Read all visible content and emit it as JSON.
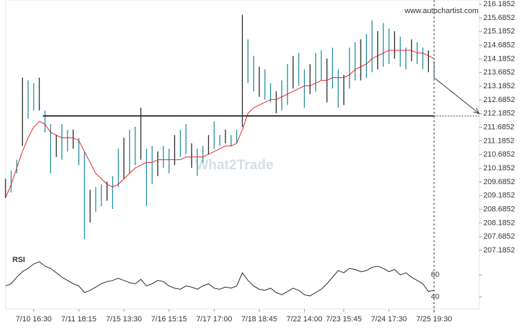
{
  "chart_data": {
    "type": "range_bar",
    "watermark": "What2Trade",
    "source": "www.autochartist.com",
    "color": "#1b8a9c",
    "ma_color": "#e02020",
    "high": [
      209.8,
      210.1,
      210.5,
      213.5,
      213.4,
      213.3,
      213.5,
      212.3,
      211.8,
      211.4,
      211.8,
      211.6,
      211.6,
      211.3,
      210.8,
      209.4,
      209.5,
      209.6,
      209.7,
      209.9,
      210.9,
      211.3,
      211.6,
      211.7,
      212.4,
      210.9,
      211.0,
      210.8,
      211.0,
      210.9,
      211.4,
      211.6,
      211.8,
      211.1,
      210.9,
      211.0,
      211.4,
      211.9,
      211.4,
      211.6,
      211.4,
      211.6,
      215.8,
      214.9,
      214.3,
      213.9,
      213.8,
      213.3,
      213.0,
      213.4,
      214.0,
      214.3,
      214.4,
      213.8,
      214.0,
      214.4,
      214.5,
      214.2,
      214.6,
      213.8,
      213.6,
      214.6,
      214.8,
      214.9,
      215.1,
      215.6,
      215.2,
      215.5,
      215.3,
      215.2,
      215.0,
      214.6,
      214.9,
      214.8,
      214.6,
      214.5,
      214.1
    ],
    "low": [
      209.1,
      209.3,
      210.0,
      211.0,
      212.0,
      212.3,
      212.3,
      211.5,
      210.0,
      210.6,
      210.5,
      210.8,
      210.9,
      210.3,
      207.6,
      208.2,
      208.6,
      208.8,
      209.0,
      208.7,
      209.5,
      209.8,
      210.0,
      210.3,
      210.5,
      208.8,
      209.6,
      209.9,
      210.2,
      210.0,
      210.3,
      210.6,
      210.7,
      210.2,
      209.9,
      210.4,
      210.7,
      210.9,
      211.0,
      211.1,
      211.0,
      211.1,
      211.7,
      213.3,
      213.0,
      212.8,
      212.7,
      212.6,
      212.2,
      212.3,
      212.5,
      213.1,
      213.2,
      212.4,
      212.9,
      213.0,
      213.4,
      212.6,
      213.1,
      212.4,
      212.5,
      213.1,
      213.4,
      213.4,
      213.5,
      213.7,
      213.8,
      213.9,
      214.0,
      214.2,
      213.9,
      213.8,
      214.1,
      214.0,
      213.8,
      213.7,
      213.5
    ],
    "ma": [
      209.1,
      209.6,
      210.2,
      210.8,
      211.3,
      211.7,
      211.9,
      211.8,
      211.5,
      211.4,
      211.3,
      211.3,
      211.3,
      211.2,
      210.8,
      210.4,
      210.0,
      209.8,
      209.6,
      209.5,
      209.6,
      209.8,
      210.0,
      210.2,
      210.3,
      210.4,
      210.4,
      210.5,
      210.5,
      210.5,
      210.5,
      210.5,
      210.6,
      210.6,
      210.6,
      210.6,
      210.7,
      210.8,
      210.9,
      211.0,
      211.0,
      211.1,
      211.6,
      212.2,
      212.4,
      212.5,
      212.6,
      212.7,
      212.7,
      212.8,
      212.9,
      213.0,
      213.1,
      213.2,
      213.2,
      213.3,
      213.4,
      213.4,
      213.5,
      213.5,
      213.5,
      213.6,
      213.8,
      213.9,
      214.0,
      214.2,
      214.3,
      214.4,
      214.5,
      214.5,
      214.5,
      214.5,
      214.5,
      214.4,
      214.4,
      214.3,
      214.2
    ],
    "xlim": [
      0,
      84
    ],
    "ylim": [
      207.06,
      216.34
    ],
    "yticks": [
      216.1852,
      215.6852,
      215.1852,
      214.6852,
      214.1852,
      213.6852,
      213.1852,
      212.6852,
      212.1852,
      211.6852,
      211.1852,
      210.6852,
      210.1852,
      209.6852,
      209.1852,
      208.6852,
      208.1852,
      207.6852,
      207.1852
    ],
    "xticks": [
      {
        "value": 5,
        "label": "7/10 16:30"
      },
      {
        "value": 13,
        "label": "7/11 18:15"
      },
      {
        "value": 21,
        "label": "7/15 13:30"
      },
      {
        "value": 29,
        "label": "7/16 15:15"
      },
      {
        "value": 37,
        "label": "7/17 17:00"
      },
      {
        "value": 45,
        "label": "7/18 18:45"
      },
      {
        "value": 53,
        "label": "7/22 14:00"
      },
      {
        "value": 60,
        "label": "7/23 15:45"
      },
      {
        "value": 68,
        "label": "7/24 17:30"
      },
      {
        "value": 76,
        "label": "7/25 19:30"
      }
    ],
    "level": 212.1,
    "target": 212.1852,
    "rsi": {
      "label": "RSI",
      "ylim": [
        31,
        78
      ],
      "yticks": [
        60,
        40
      ],
      "values": [
        50,
        52,
        58,
        63,
        66,
        70,
        72,
        68,
        66,
        62,
        58,
        55,
        52,
        50,
        44,
        46,
        49,
        52,
        54,
        55,
        57,
        55,
        53,
        52,
        56,
        50,
        52,
        55,
        54,
        50,
        48,
        47,
        50,
        49,
        47,
        50,
        52,
        48,
        47,
        49,
        48,
        50,
        62,
        55,
        50,
        47,
        46,
        48,
        44,
        42,
        45,
        48,
        46,
        42,
        41,
        44,
        47,
        52,
        58,
        64,
        62,
        66,
        65,
        63,
        64,
        67,
        68,
        66,
        63,
        65,
        60,
        62,
        58,
        55,
        52,
        45,
        46
      ]
    }
  }
}
